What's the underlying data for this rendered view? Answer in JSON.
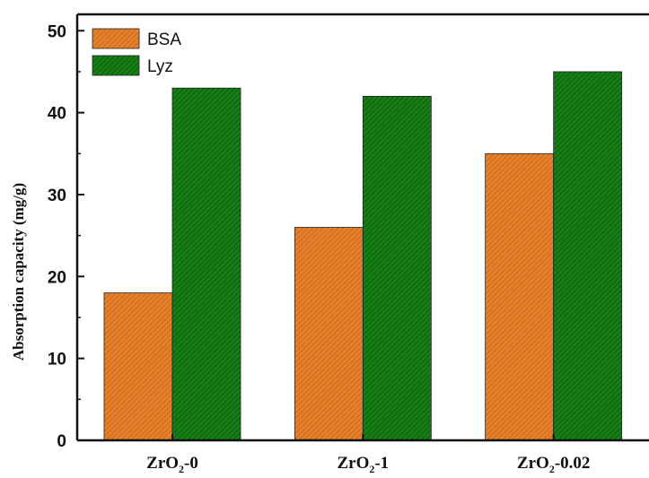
{
  "chart_data": {
    "type": "bar",
    "title": "",
    "xlabel": "",
    "ylabel": "Absorption capacity (mg/g)",
    "ylim": [
      0,
      52
    ],
    "yticks": [
      0,
      10,
      20,
      30,
      40,
      50
    ],
    "grid": false,
    "legend": "top-left",
    "categories": [
      {
        "base": "ZrO",
        "sub": "2",
        "suffix": "-0"
      },
      {
        "base": "ZrO",
        "sub": "2",
        "suffix": "-1"
      },
      {
        "base": "ZrO",
        "sub": "2",
        "suffix": "-0.02"
      }
    ],
    "series": [
      {
        "name": "BSA",
        "color": "#d9731f",
        "hatch": "#f0a050",
        "values": [
          18,
          26,
          35
        ]
      },
      {
        "name": "Lyz",
        "color": "#0f6e0f",
        "hatch": "#2a9a2a",
        "values": [
          43,
          42,
          45
        ]
      }
    ]
  }
}
